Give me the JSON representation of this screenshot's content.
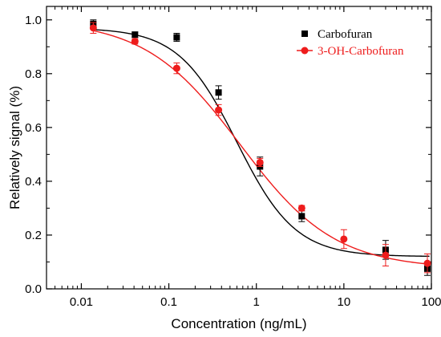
{
  "chart_data": {
    "type": "scatter",
    "xlabel": "Concentration (ng/mL)",
    "ylabel": "Relatively signal (%)",
    "xscale": "log",
    "xlim": [
      0.004,
      100
    ],
    "ylim": [
      0.0,
      1.05
    ],
    "x_ticks": [
      0.01,
      0.1,
      1,
      10,
      100
    ],
    "x_tick_labels": [
      "0.01",
      "0.1",
      "1",
      "10",
      "100"
    ],
    "y_ticks": [
      0.0,
      0.2,
      0.4,
      0.6,
      0.8,
      1.0
    ],
    "y_tick_labels": [
      "0.0",
      "0.2",
      "0.4",
      "0.6",
      "0.8",
      "1.0"
    ],
    "legend_position": "top-right",
    "series": [
      {
        "name": "Carbofuran",
        "color": "#000000",
        "marker": "square",
        "x": [
          0.0137,
          0.041,
          0.123,
          0.37,
          1.1,
          3.3,
          30,
          90
        ],
        "y": [
          0.985,
          0.945,
          0.935,
          0.73,
          0.455,
          0.27,
          0.145,
          0.075
        ],
        "error": [
          0.015,
          0.01,
          0.015,
          0.025,
          0.035,
          0.02,
          0.035,
          0.025
        ],
        "fit_curve": {
          "top": 0.97,
          "bottom": 0.12,
          "ic50": 0.6,
          "slope": 1.3
        }
      },
      {
        "name": "3-OH-Carbofuran",
        "color": "#ee1c1c",
        "marker": "circle",
        "x": [
          0.0137,
          0.041,
          0.123,
          0.37,
          1.1,
          3.3,
          10,
          30,
          90
        ],
        "y": [
          0.97,
          0.92,
          0.82,
          0.665,
          0.47,
          0.3,
          0.185,
          0.125,
          0.095
        ],
        "error": [
          0.02,
          0.01,
          0.02,
          0.02,
          0.015,
          0.01,
          0.035,
          0.04,
          0.035
        ],
        "fit_curve": {
          "top": 1.0,
          "bottom": 0.075,
          "ic50": 0.65,
          "slope": 0.8
        }
      }
    ]
  }
}
